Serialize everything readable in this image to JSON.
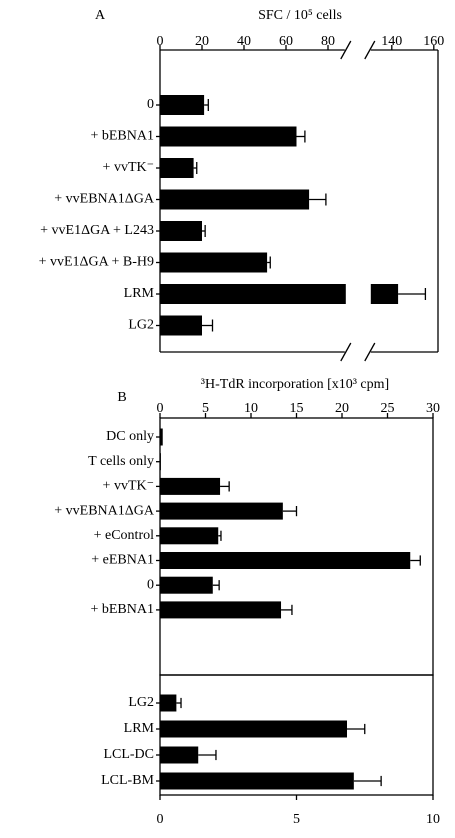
{
  "chart_data": [
    {
      "type": "bar",
      "panel": "A",
      "xlabel": "SFC / 10⁵ cells",
      "categories": [
        "0",
        "+ bEBNA1",
        "+ vvTK⁻",
        "+ vvEBNA1ΔGA",
        "+ vvE1ΔGA + L243",
        "+ vvE1ΔGA + B-H9",
        "LRM",
        "LG2"
      ],
      "values": [
        21,
        65,
        16,
        71,
        20,
        51,
        143,
        20
      ],
      "errors": [
        2,
        4,
        1.5,
        8,
        1.5,
        1.5,
        13,
        5
      ],
      "color": "#000000",
      "xlim": [
        0,
        162
      ],
      "xbreak": [
        88,
        130
      ],
      "xticks": [
        0,
        20,
        40,
        60,
        80,
        140,
        160
      ]
    },
    {
      "type": "bar",
      "panel": "B",
      "xlabel": "³H-TdR incorporation [x10³ cpm]",
      "categories": [
        "DC only",
        "T cells only",
        "+ vvTK⁻",
        "+ vvEBNA1ΔGA",
        "+ eControl",
        "+ eEBNA1",
        "0",
        "+ bEBNA1"
      ],
      "values": [
        0.3,
        0.1,
        6.6,
        13.5,
        6.4,
        27.5,
        5.8,
        13.3
      ],
      "errors": [
        null,
        null,
        1,
        1.5,
        0.3,
        1.1,
        0.7,
        1.2
      ],
      "color": "#000000",
      "xlim": [
        0,
        30
      ],
      "xticks": [
        0,
        5,
        10,
        15,
        20,
        25,
        30
      ]
    },
    {
      "type": "bar",
      "categories": [
        "LG2",
        "LRM",
        "LCL-DC",
        "LCL-BM"
      ],
      "values": [
        0.6,
        6.85,
        1.4,
        7.1
      ],
      "errors": [
        0.17,
        0.65,
        0.65,
        1.0
      ],
      "color": "#000000",
      "xlim": [
        0,
        10
      ],
      "xticks": [
        0,
        5,
        10
      ]
    }
  ]
}
